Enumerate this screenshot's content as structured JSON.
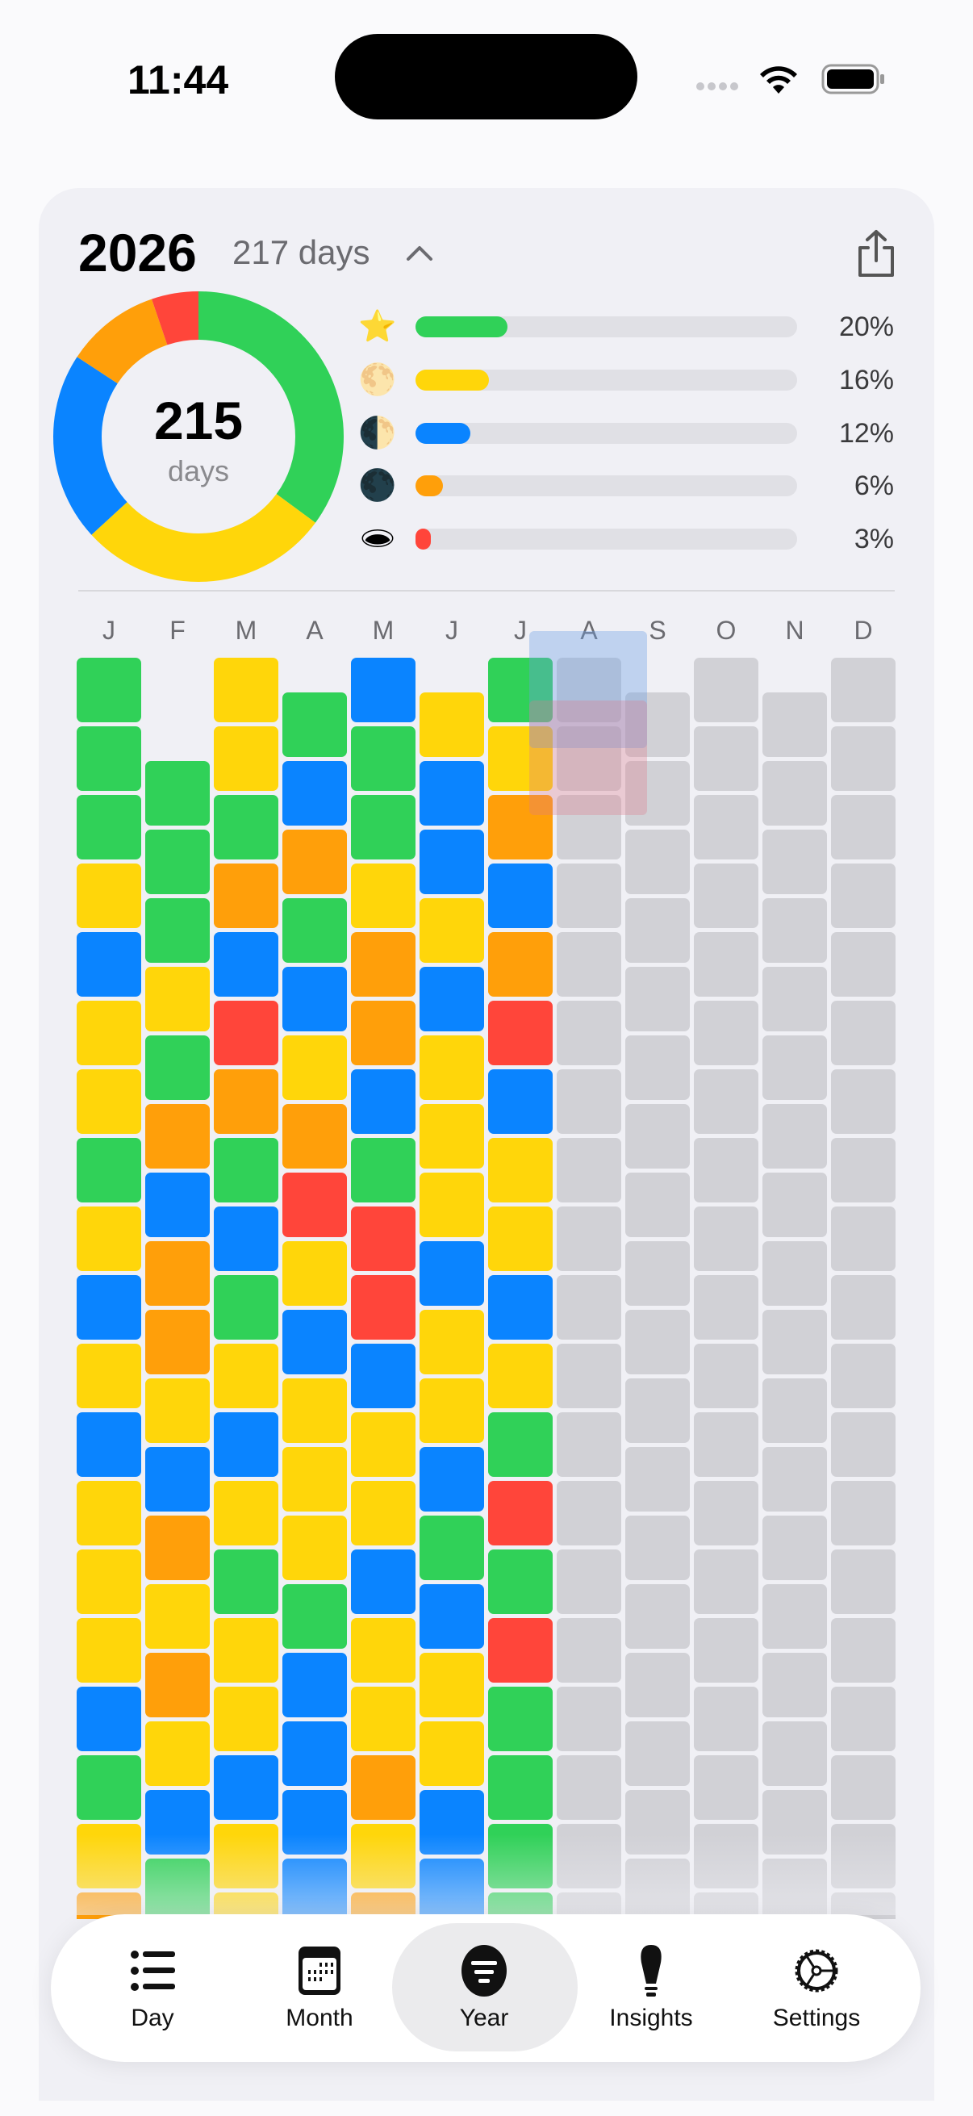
{
  "status_bar": {
    "time": "11:44"
  },
  "header": {
    "year": "2026",
    "day_count": "217 days"
  },
  "summary": {
    "total": "215",
    "unit": "days"
  },
  "legend": [
    {
      "icon": "star-icon",
      "glyph": "⭐",
      "color": "#30d158",
      "percent": 20,
      "label": "20%"
    },
    {
      "icon": "full-moon-icon",
      "glyph": "🌕",
      "color": "#ffd60a",
      "percent": 16,
      "label": "16%"
    },
    {
      "icon": "half-moon-icon",
      "glyph": "🌓",
      "color": "#0a84ff",
      "percent": 12,
      "label": "12%"
    },
    {
      "icon": "new-moon-icon",
      "glyph": "🌑",
      "color": "#ff9f0a",
      "percent": 6,
      "label": "6%"
    },
    {
      "icon": "hole-icon",
      "glyph": "🕳",
      "color": "#ff453a",
      "percent": 3,
      "label": "3%"
    }
  ],
  "mood_colors": {
    "G": "#30d158",
    "Y": "#ffd60a",
    "B": "#0a84ff",
    "O": "#ff9f0a",
    "R": "#ff453a",
    "empty": "#d1d1d6"
  },
  "months": [
    {
      "label": "J",
      "days": 31,
      "moods": "GGGYBYYGYBYBYYYBGYO"
    },
    {
      "label": "F",
      "days": 28,
      "moods": "GGGYGOBOOYBOYOYBG"
    },
    {
      "label": "M",
      "days": 31,
      "moods": "YYGOBROGBGYBYGYYBYY"
    },
    {
      "label": "A",
      "days": 30,
      "moods": "GBOGBYORYBYYYGBBBB"
    },
    {
      "label": "M",
      "days": 31,
      "moods": "BGGYOOBGRRBYYBYYOYO"
    },
    {
      "label": "J",
      "days": 30,
      "moods": "YBBYBYYYBYYBGBYYBB"
    },
    {
      "label": "J",
      "days": 31,
      "moods": "GYOBORBYYBYGRGRGGGG"
    },
    {
      "label": "A",
      "days": 31,
      "moods": ""
    },
    {
      "label": "S",
      "days": 30,
      "moods": ""
    },
    {
      "label": "O",
      "days": 31,
      "moods": ""
    },
    {
      "label": "N",
      "days": 30,
      "moods": ""
    },
    {
      "label": "D",
      "days": 31,
      "moods": ""
    }
  ],
  "tabs": [
    {
      "label": "Day",
      "icon": "list-icon",
      "selected": false
    },
    {
      "label": "Month",
      "icon": "calendar-icon",
      "selected": false
    },
    {
      "label": "Year",
      "icon": "year-filter-icon",
      "selected": true
    },
    {
      "label": "Insights",
      "icon": "lightbulb-icon",
      "selected": false
    },
    {
      "label": "Settings",
      "icon": "gear-icon",
      "selected": false
    }
  ]
}
